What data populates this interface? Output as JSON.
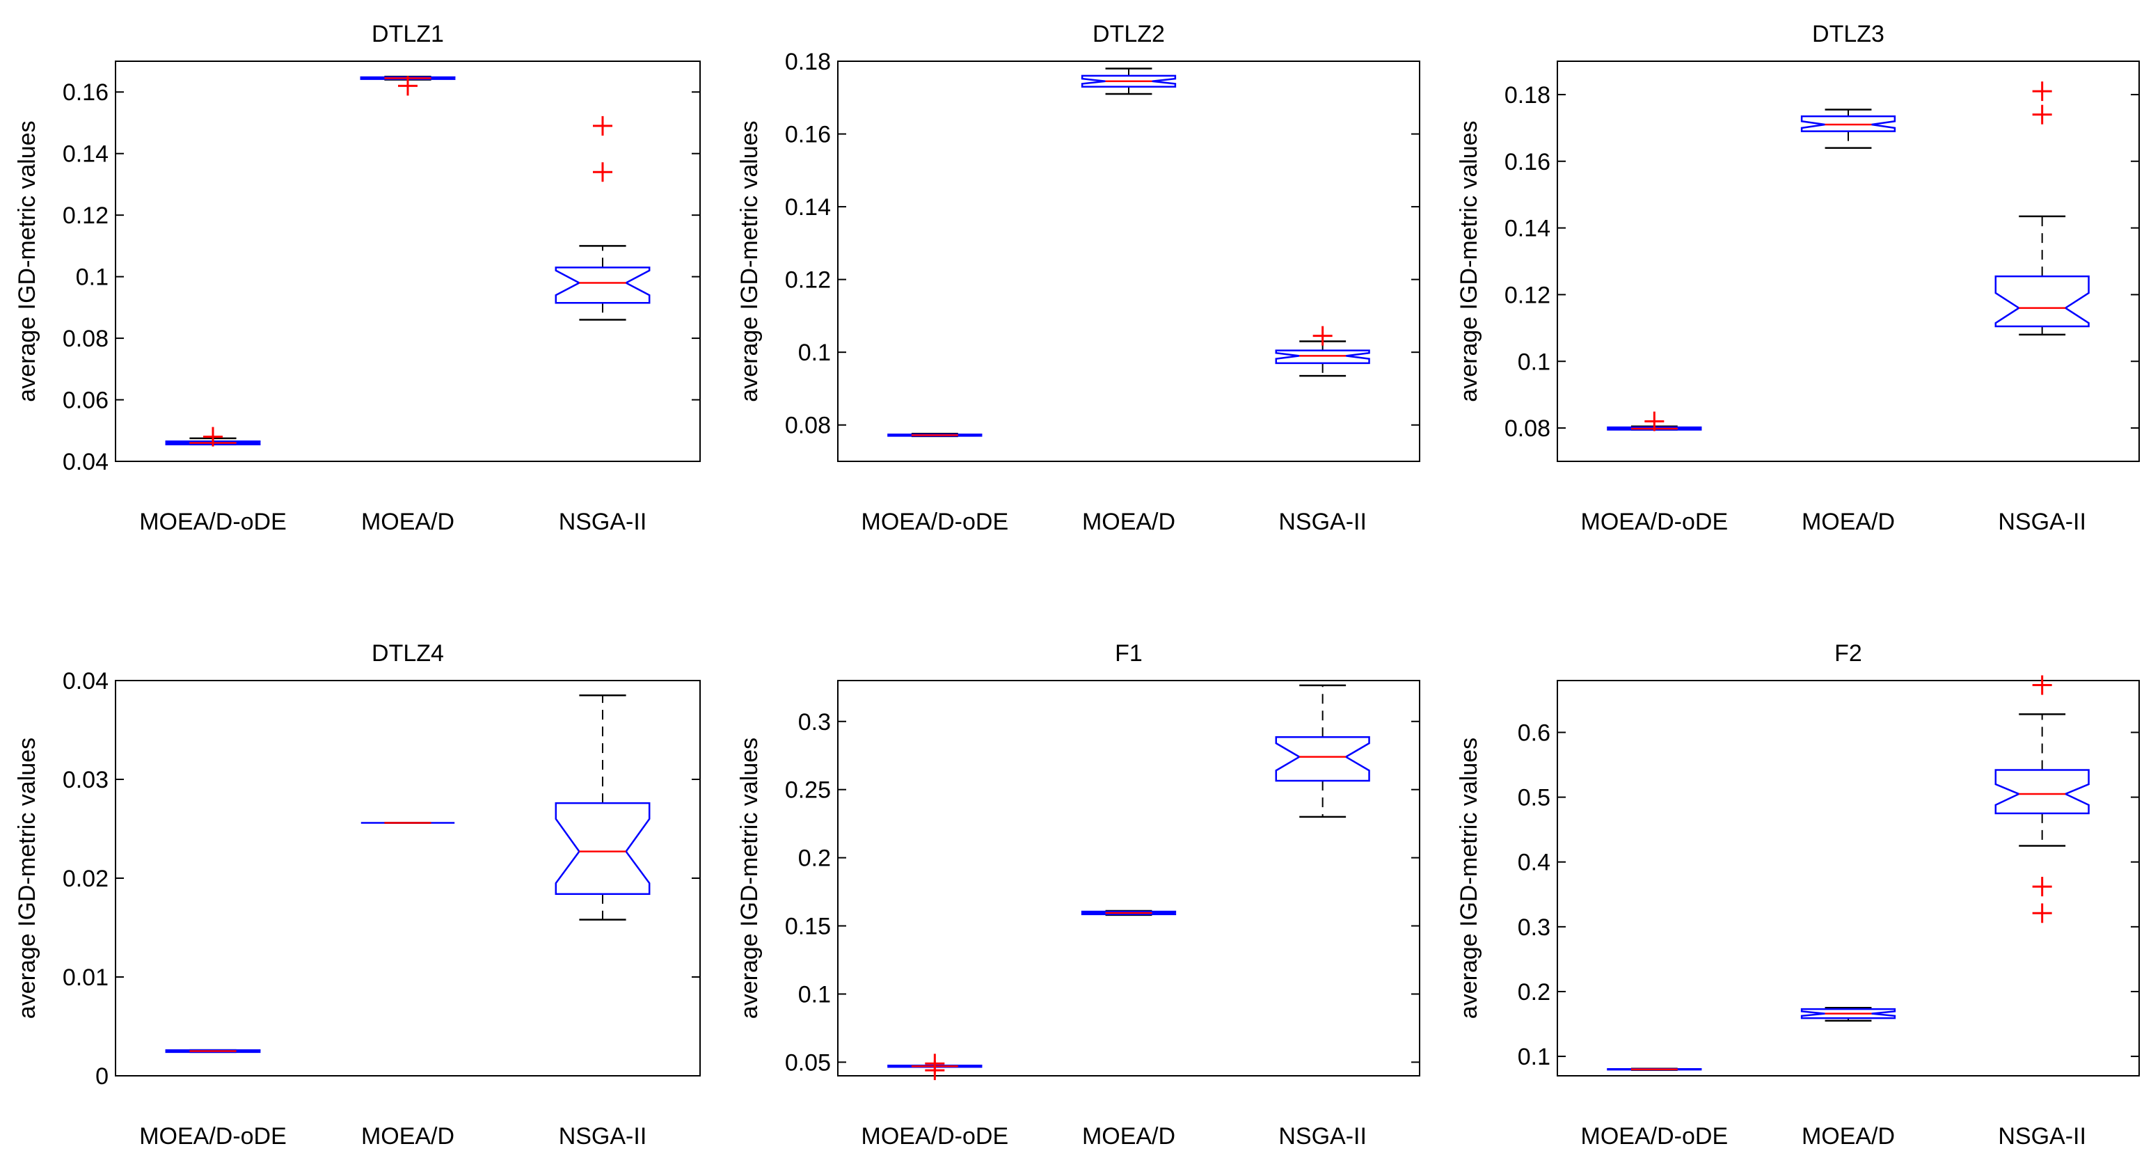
{
  "figure": {
    "description_label": "Box plots of average IGD-metric values",
    "colors": {
      "box": "#0000ff",
      "median": "#ff0000",
      "outlier": "#ff0000",
      "whisker": "#000000",
      "axes": "#000000"
    }
  },
  "chart_data": [
    {
      "type": "boxplot",
      "title": "DTLZ1",
      "ylabel": "average IGD-metric values",
      "ylim": [
        0.04,
        0.17
      ],
      "yticks": [
        0.04,
        0.06,
        0.08,
        0.1,
        0.12,
        0.14,
        0.16
      ],
      "yticklabels": [
        "0.04",
        "0.06",
        "0.08",
        "0.1",
        "0.12",
        "0.14",
        "0.16"
      ],
      "categories": [
        "MOEA/D-oDE",
        "MOEA/D",
        "NSGA-II"
      ],
      "boxes": [
        {
          "lower_whisker": 0.0455,
          "q1": 0.0455,
          "median": 0.046,
          "q3": 0.0465,
          "upper_whisker": 0.0475,
          "notch": [
            0.0458,
            0.0462
          ],
          "outliers": [
            0.048
          ]
        },
        {
          "lower_whisker": 0.164,
          "q1": 0.1642,
          "median": 0.1645,
          "q3": 0.1648,
          "upper_whisker": 0.165,
          "notch": [
            0.1643,
            0.1647
          ],
          "outliers": [
            0.162
          ]
        },
        {
          "lower_whisker": 0.086,
          "q1": 0.0915,
          "median": 0.098,
          "q3": 0.103,
          "upper_whisker": 0.11,
          "notch": [
            0.094,
            0.102
          ],
          "outliers": [
            0.134,
            0.149
          ]
        }
      ]
    },
    {
      "type": "boxplot",
      "title": "DTLZ2",
      "ylabel": "average IGD-metric values",
      "ylim": [
        0.07,
        0.18
      ],
      "yticks": [
        0.08,
        0.1,
        0.12,
        0.14,
        0.16,
        0.18
      ],
      "yticklabels": [
        "0.08",
        "0.1",
        "0.12",
        "0.14",
        "0.16",
        "0.18"
      ],
      "categories": [
        "MOEA/D-oDE",
        "MOEA/D",
        "NSGA-II"
      ],
      "boxes": [
        {
          "lower_whisker": 0.0769,
          "q1": 0.077,
          "median": 0.0772,
          "q3": 0.0774,
          "upper_whisker": 0.0776,
          "notch": [
            0.0771,
            0.0773
          ],
          "outliers": []
        },
        {
          "lower_whisker": 0.171,
          "q1": 0.173,
          "median": 0.1745,
          "q3": 0.176,
          "upper_whisker": 0.178,
          "notch": [
            0.1738,
            0.1752
          ],
          "outliers": []
        },
        {
          "lower_whisker": 0.0935,
          "q1": 0.097,
          "median": 0.099,
          "q3": 0.1005,
          "upper_whisker": 0.103,
          "notch": [
            0.0982,
            0.0998
          ],
          "outliers": [
            0.1045
          ]
        }
      ]
    },
    {
      "type": "boxplot",
      "title": "DTLZ3",
      "ylabel": "average IGD-metric values",
      "ylim": [
        0.07,
        0.19
      ],
      "yticks": [
        0.08,
        0.1,
        0.12,
        0.14,
        0.16,
        0.18
      ],
      "yticklabels": [
        "0.08",
        "0.1",
        "0.12",
        "0.14",
        "0.16",
        "0.18"
      ],
      "categories": [
        "MOEA/D-oDE",
        "MOEA/D",
        "NSGA-II"
      ],
      "boxes": [
        {
          "lower_whisker": 0.0795,
          "q1": 0.0795,
          "median": 0.0798,
          "q3": 0.0802,
          "upper_whisker": 0.0805,
          "notch": [
            0.0796,
            0.08
          ],
          "outliers": [
            0.082
          ]
        },
        {
          "lower_whisker": 0.164,
          "q1": 0.169,
          "median": 0.171,
          "q3": 0.1735,
          "upper_whisker": 0.1755,
          "notch": [
            0.17,
            0.172
          ],
          "outliers": []
        },
        {
          "lower_whisker": 0.108,
          "q1": 0.1105,
          "median": 0.116,
          "q3": 0.1255,
          "upper_whisker": 0.1435,
          "notch": [
            0.1115,
            0.1205
          ],
          "outliers": [
            0.174,
            0.181
          ]
        }
      ]
    },
    {
      "type": "boxplot",
      "title": "DTLZ4",
      "ylabel": "average IGD-metric values",
      "ylim": [
        0,
        0.04
      ],
      "yticks": [
        0,
        0.01,
        0.02,
        0.03,
        0.04
      ],
      "yticklabels": [
        "0",
        "0.01",
        "0.02",
        "0.03",
        "0.04"
      ],
      "categories": [
        "MOEA/D-oDE",
        "MOEA/D",
        "NSGA-II"
      ],
      "boxes": [
        {
          "lower_whisker": 0.0024,
          "q1": 0.0024,
          "median": 0.0025,
          "q3": 0.0026,
          "upper_whisker": 0.0026,
          "notch": [
            0.00245,
            0.00255
          ],
          "outliers": []
        },
        {
          "lower_whisker": 0.0256,
          "q1": 0.0256,
          "median": 0.0256,
          "q3": 0.0256,
          "upper_whisker": 0.0256,
          "notch": [
            0.0256,
            0.0256
          ],
          "outliers": []
        },
        {
          "lower_whisker": 0.0158,
          "q1": 0.0184,
          "median": 0.0227,
          "q3": 0.0276,
          "upper_whisker": 0.0385,
          "notch": [
            0.0195,
            0.026
          ],
          "outliers": []
        }
      ]
    },
    {
      "type": "boxplot",
      "title": "F1",
      "ylabel": "average IGD-metric values",
      "ylim": [
        0.04,
        0.33
      ],
      "yticks": [
        0.05,
        0.1,
        0.15,
        0.2,
        0.25,
        0.3
      ],
      "yticklabels": [
        "0.05",
        "0.1",
        "0.15",
        "0.2",
        "0.25",
        "0.3"
      ],
      "categories": [
        "MOEA/D-oDE",
        "MOEA/D",
        "NSGA-II"
      ],
      "boxes": [
        {
          "lower_whisker": 0.0465,
          "q1": 0.0465,
          "median": 0.047,
          "q3": 0.0475,
          "upper_whisker": 0.0475,
          "notch": [
            0.0467,
            0.0473
          ],
          "outliers": [
            0.044,
            0.049
          ]
        },
        {
          "lower_whisker": 0.158,
          "q1": 0.1585,
          "median": 0.1595,
          "q3": 0.1605,
          "upper_whisker": 0.161,
          "notch": [
            0.159,
            0.16
          ],
          "outliers": []
        },
        {
          "lower_whisker": 0.23,
          "q1": 0.2565,
          "median": 0.274,
          "q3": 0.2885,
          "upper_whisker": 0.3265,
          "notch": [
            0.264,
            0.284
          ],
          "outliers": []
        }
      ]
    },
    {
      "type": "boxplot",
      "title": "F2",
      "ylabel": "average IGD-metric values",
      "ylim": [
        0.07,
        0.68
      ],
      "yticks": [
        0.1,
        0.2,
        0.3,
        0.4,
        0.5,
        0.6
      ],
      "yticklabels": [
        "0.1",
        "0.2",
        "0.3",
        "0.4",
        "0.5",
        "0.6"
      ],
      "categories": [
        "MOEA/D-oDE",
        "MOEA/D",
        "NSGA-II"
      ],
      "boxes": [
        {
          "lower_whisker": 0.079,
          "q1": 0.0795,
          "median": 0.08,
          "q3": 0.0805,
          "upper_whisker": 0.081,
          "notch": [
            0.0798,
            0.0802
          ],
          "outliers": []
        },
        {
          "lower_whisker": 0.155,
          "q1": 0.159,
          "median": 0.166,
          "q3": 0.173,
          "upper_whisker": 0.175,
          "notch": [
            0.1625,
            0.1695
          ],
          "outliers": []
        },
        {
          "lower_whisker": 0.425,
          "q1": 0.475,
          "median": 0.505,
          "q3": 0.542,
          "upper_whisker": 0.628,
          "notch": [
            0.488,
            0.52
          ],
          "outliers": [
            0.673,
            0.362,
            0.321
          ]
        }
      ]
    }
  ]
}
